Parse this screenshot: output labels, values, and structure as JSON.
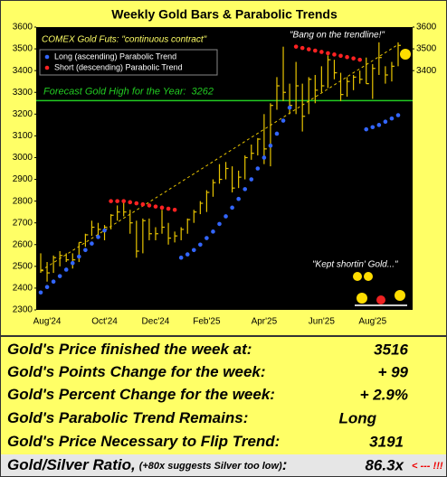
{
  "chart_data": {
    "type": "ohlc",
    "title": "Weekly Gold Bars & Parabolic Trends",
    "annotations": {
      "source": "COMEX Gold Futs:  \"continuous contract\"",
      "top": "\"Bang on the trendline!\"",
      "bottom": "\"Kept shortin' Gold...\""
    },
    "forecast_high": {
      "label": "Forecast Gold High for the Year:",
      "value": 3262,
      "color": "#22cc22"
    },
    "categories": [
      null,
      "Aug'24",
      null,
      null,
      null,
      null,
      null,
      null,
      null,
      null,
      "Oct'24",
      null,
      null,
      null,
      null,
      null,
      null,
      null,
      "Dec'24",
      null,
      null,
      null,
      null,
      null,
      null,
      null,
      "Feb'25",
      null,
      null,
      null,
      null,
      null,
      null,
      null,
      null,
      "Apr'25",
      null,
      null,
      null,
      null,
      null,
      null,
      null,
      null,
      "Jun'25",
      null,
      null,
      null,
      null,
      null,
      null,
      null,
      "Aug'25",
      null,
      null,
      null,
      null
    ],
    "bars": {
      "color": "#e8c400",
      "low": [
        2470,
        2430,
        2470,
        2500,
        2520,
        2490,
        2520,
        2590,
        2640,
        2640,
        2620,
        2670,
        2710,
        2730,
        2650,
        2540,
        2560,
        2620,
        2620,
        2650,
        2600,
        2610,
        2620,
        2650,
        2700,
        2740,
        2750,
        2820,
        2880,
        2900,
        2840,
        2860,
        2900,
        2990,
        3010,
        2970,
        2960,
        3220,
        3260,
        3200,
        3200,
        3120,
        3200,
        3250,
        3300,
        3320,
        3360,
        3260,
        3280,
        3310,
        3340,
        3340,
        3270,
        3380,
        3340,
        3350,
        3420
      ],
      "high": [
        2560,
        2520,
        2550,
        2570,
        2560,
        2560,
        2610,
        2650,
        2710,
        2700,
        2690,
        2740,
        2780,
        2800,
        2760,
        2710,
        2720,
        2720,
        2680,
        2760,
        2700,
        2660,
        2680,
        2720,
        2760,
        2800,
        2850,
        2900,
        2970,
        2980,
        2960,
        2940,
        3010,
        3060,
        3090,
        3200,
        3250,
        3370,
        3510,
        3340,
        3440,
        3340,
        3370,
        3380,
        3420,
        3470,
        3450,
        3390,
        3370,
        3380,
        3400,
        3460,
        3430,
        3530,
        3420,
        3440,
        3530
      ],
      "close": [
        2480,
        2470,
        2540,
        2550,
        2530,
        2530,
        2610,
        2645,
        2680,
        2670,
        2680,
        2735,
        2750,
        2750,
        2700,
        2570,
        2710,
        2650,
        2650,
        2680,
        2630,
        2640,
        2670,
        2715,
        2750,
        2790,
        2840,
        2885,
        2900,
        2950,
        2860,
        2910,
        3000,
        3020,
        3085,
        3040,
        3240,
        3330,
        3300,
        3240,
        3330,
        3190,
        3360,
        3310,
        3330,
        3450,
        3390,
        3290,
        3350,
        3370,
        3360,
        3340,
        3410,
        3460,
        3380,
        3420,
        3516
      ]
    },
    "series": [
      {
        "name": "Long (ascending) Parabolic Trend",
        "color": "#3366ff",
        "values": [
          2380,
          2405,
          2430,
          2455,
          2485,
          2515,
          2545,
          2575,
          2605,
          2635,
          2665,
          null,
          null,
          null,
          null,
          null,
          null,
          null,
          null,
          null,
          null,
          null,
          2540,
          2555,
          2575,
          2600,
          2630,
          2660,
          2695,
          2730,
          2770,
          2810,
          2855,
          2900,
          2950,
          3000,
          3055,
          3110,
          3170,
          3230,
          null,
          null,
          null,
          null,
          null,
          null,
          null,
          null,
          null,
          null,
          null,
          3130,
          3140,
          3150,
          3165,
          3180,
          3195
        ]
      },
      {
        "name": "Short (descending) Parabolic Trend",
        "color": "#ff2222",
        "values": [
          null,
          null,
          null,
          null,
          null,
          null,
          null,
          null,
          null,
          null,
          null,
          2800,
          2800,
          2800,
          2795,
          2790,
          2785,
          2780,
          2775,
          2770,
          2765,
          2760,
          null,
          null,
          null,
          null,
          null,
          null,
          null,
          null,
          null,
          null,
          null,
          null,
          null,
          null,
          null,
          null,
          null,
          null,
          3510,
          3504,
          3498,
          3492,
          3486,
          3480,
          3474,
          3468,
          3462,
          3456,
          3450,
          null,
          null,
          null,
          null,
          null,
          null
        ]
      }
    ],
    "trend_line": {
      "color": "#e8c400",
      "values": [
        2480,
        3520
      ]
    },
    "ylim": [
      2300,
      3600
    ],
    "yticks": [
      2300,
      2400,
      2500,
      2600,
      2700,
      2800,
      2900,
      3000,
      3100,
      3200,
      3300,
      3400,
      3500,
      3600
    ],
    "y2lim": [
      2300,
      3600
    ],
    "y2ticks": [
      3400,
      3500,
      3600
    ],
    "legend": "upper left"
  },
  "summary": {
    "rows": [
      {
        "label": "Gold's Price finished the week at:",
        "value": "3516"
      },
      {
        "label": "Gold's Points Change for the week:",
        "value": "+ 99"
      },
      {
        "label": "Gold's Percent Change for the week:",
        "value": "+ 2.9%"
      },
      {
        "label": "Gold's Parabolic Trend Remains:",
        "value": "Long"
      },
      {
        "label": "Gold's Price Necessary to Flip Trend:",
        "value": "3191"
      },
      {
        "label": "Gold/Silver Ratio,",
        "note": "(+80x suggests Silver too low)",
        "suffix": ":",
        "value": "86.3x",
        "alert": "< --- !!!"
      }
    ]
  }
}
